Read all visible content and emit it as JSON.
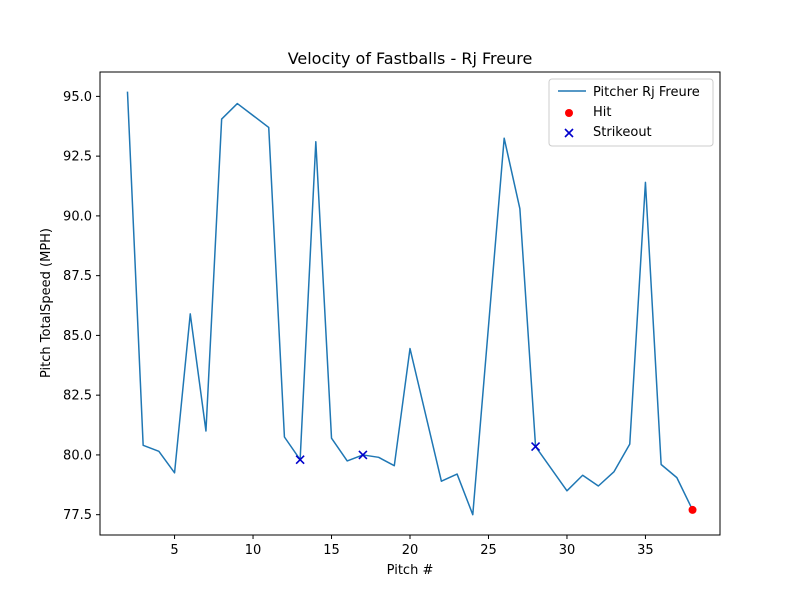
{
  "chart_data": {
    "type": "line",
    "title": "Velocity of Fastballs - Rj Freure",
    "xlabel": "Pitch #",
    "ylabel": "Pitch TotalSpeed (MPH)",
    "xlim": [
      0.25,
      39.75
    ],
    "ylim": [
      76.65,
      96.02
    ],
    "xticks": [
      5,
      10,
      15,
      20,
      25,
      30,
      35
    ],
    "xtick_labels": [
      "5",
      "10",
      "15",
      "20",
      "25",
      "30",
      "35"
    ],
    "yticks": [
      77.5,
      80.0,
      82.5,
      85.0,
      87.5,
      90.0,
      92.5,
      95.0
    ],
    "ytick_labels": [
      "77.5",
      "80.0",
      "82.5",
      "85.0",
      "87.5",
      "90.0",
      "92.5",
      "95.0"
    ],
    "grid": false,
    "legend_position": "top-right",
    "series": [
      {
        "name": "Pitcher Rj Freure",
        "kind": "line",
        "color": "#1f77b4",
        "x": [
          2,
          3,
          4,
          5,
          6,
          7,
          8,
          9,
          11,
          12,
          13,
          14,
          15,
          16,
          17,
          18,
          19,
          20,
          22,
          23,
          24,
          26,
          27,
          28,
          30,
          31,
          32,
          33,
          34,
          35,
          36,
          37,
          38
        ],
        "y": [
          95.2,
          80.4,
          80.15,
          79.25,
          85.9,
          81.0,
          94.05,
          94.7,
          93.7,
          80.75,
          79.8,
          93.1,
          80.7,
          79.75,
          80.0,
          79.9,
          79.55,
          84.45,
          78.9,
          79.2,
          77.5,
          93.25,
          90.3,
          80.35,
          78.5,
          79.15,
          78.7,
          79.3,
          80.45,
          91.4,
          79.6,
          79.05,
          77.7
        ]
      },
      {
        "name": "Hit",
        "kind": "scatter",
        "marker": "circle",
        "color": "#ff0000",
        "x": [
          38
        ],
        "y": [
          77.7
        ]
      },
      {
        "name": "Strikeout",
        "kind": "scatter",
        "marker": "x",
        "color": "#0000cc",
        "x": [
          13,
          17,
          28
        ],
        "y": [
          79.8,
          80.0,
          80.35
        ]
      }
    ]
  }
}
